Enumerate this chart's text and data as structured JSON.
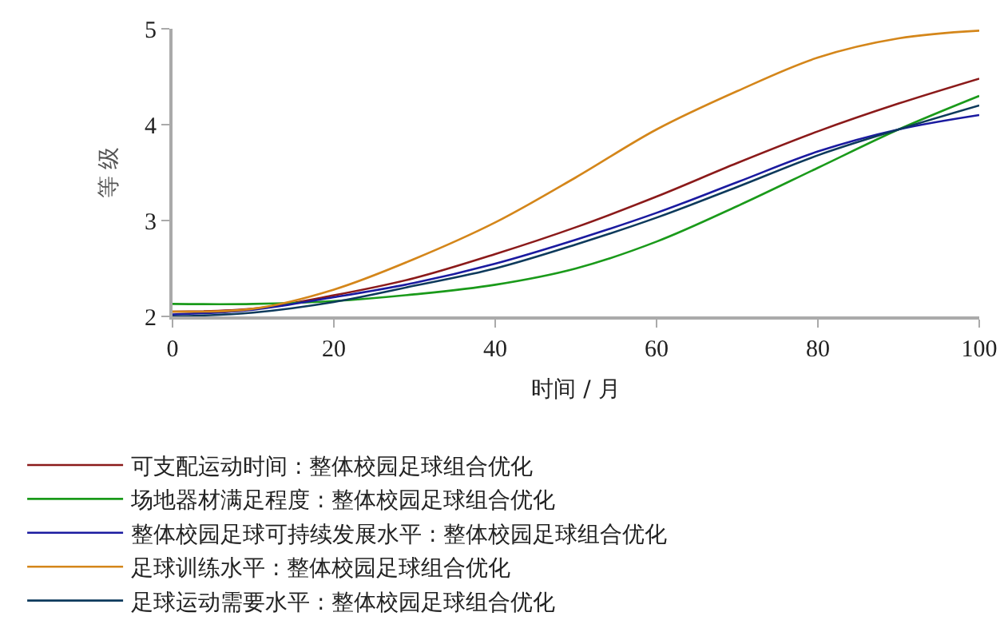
{
  "chart_data": {
    "type": "line",
    "xlabel": "时间 / 月",
    "ylabel": "等 级",
    "x": [
      0,
      10,
      20,
      30,
      40,
      50,
      60,
      70,
      80,
      90,
      100
    ],
    "xlim": [
      0,
      100
    ],
    "xticks": [
      0,
      20,
      40,
      60,
      80,
      100
    ],
    "ylim": [
      2,
      5
    ],
    "yticks": [
      2,
      3,
      4,
      5
    ],
    "grid": false,
    "legend": "bottom",
    "marker": "none",
    "line_style": "solid",
    "series": [
      {
        "name": "可支配运动时间 : 整体校园足球组合优化",
        "color": "#8b1a1a",
        "values": [
          2.05,
          2.08,
          2.22,
          2.4,
          2.65,
          2.93,
          3.25,
          3.6,
          3.93,
          4.22,
          4.48
        ]
      },
      {
        "name": "场地器材满足程度 : 整体校园足球组合优化",
        "color": "#1a9a1a",
        "values": [
          2.13,
          2.13,
          2.16,
          2.23,
          2.33,
          2.5,
          2.78,
          3.15,
          3.55,
          3.95,
          4.3
        ]
      },
      {
        "name": "整体校园足球可持续发展水平 : 整体校园足球组合优化",
        "color": "#1a1aa0",
        "values": [
          2.02,
          2.07,
          2.2,
          2.35,
          2.55,
          2.8,
          3.08,
          3.4,
          3.72,
          3.95,
          4.1
        ]
      },
      {
        "name": "足球训练水平 : 整体校园足球组合优化",
        "color": "#d4861a",
        "values": [
          2.05,
          2.08,
          2.28,
          2.6,
          2.98,
          3.45,
          3.95,
          4.35,
          4.7,
          4.9,
          4.98
        ]
      },
      {
        "name": "足球运动需要水平 : 整体校园足球组合优化",
        "color": "#0d3a5c",
        "values": [
          2.0,
          2.04,
          2.15,
          2.32,
          2.5,
          2.75,
          3.03,
          3.35,
          3.68,
          3.95,
          4.2
        ]
      }
    ]
  }
}
